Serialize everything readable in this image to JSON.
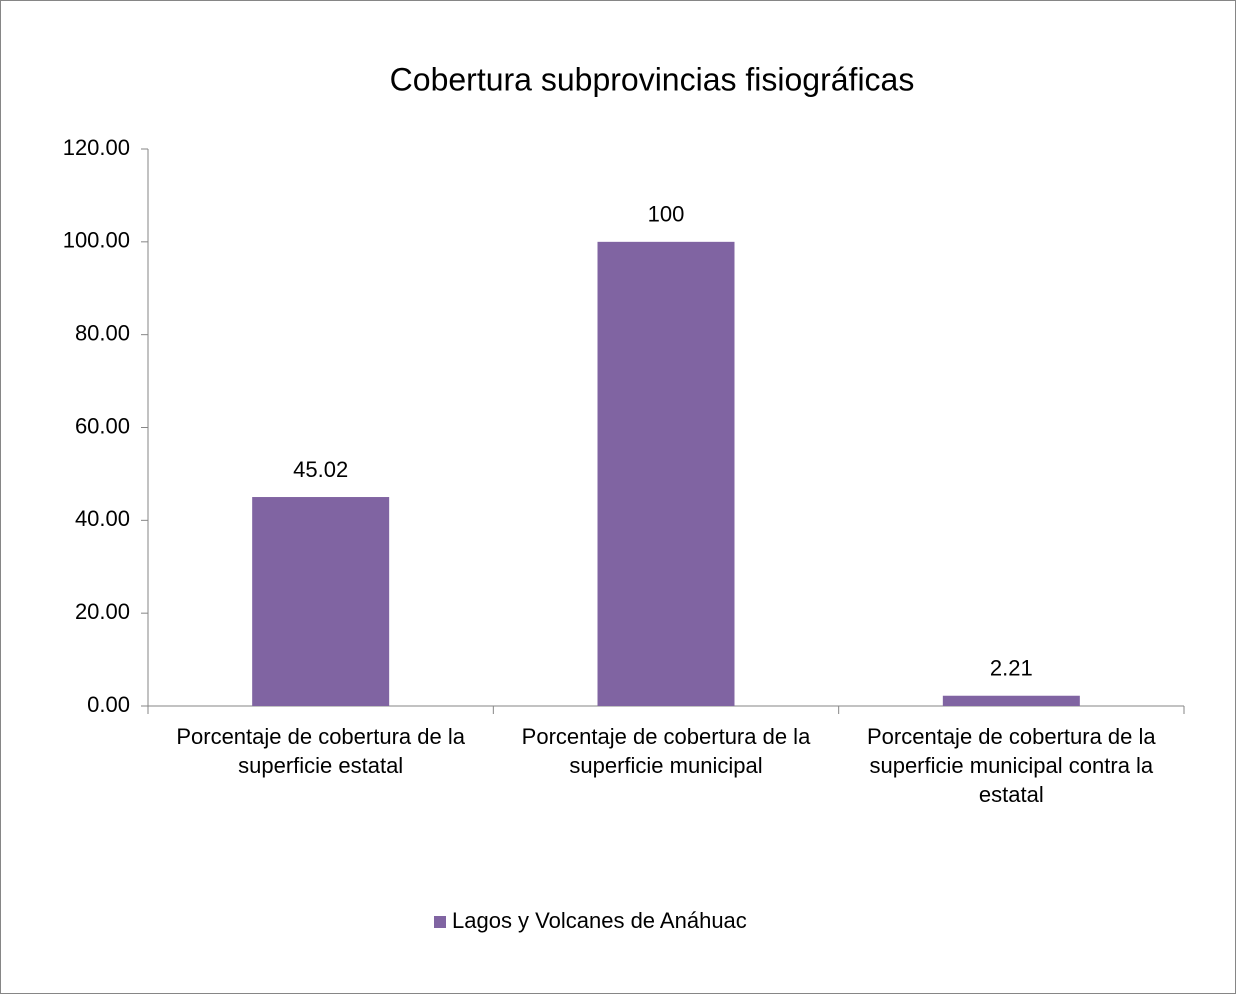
{
  "chart_data": {
    "type": "bar",
    "title": "Cobertura subprovincias fisiográficas",
    "categories": [
      "Porcentaje de cobertura de la superficie estatal",
      "Porcentaje de cobertura de la superficie municipal",
      "Porcentaje de cobertura de la superficie municipal contra la estatal"
    ],
    "series": [
      {
        "name": "Lagos y Volcanes de Anáhuac",
        "color": "#8064a2",
        "values": [
          45.02,
          100,
          2.21
        ]
      }
    ],
    "ylim": [
      0,
      120
    ],
    "yticks": [
      {
        "value": 0,
        "label": "0.00"
      },
      {
        "value": 20,
        "label": "20.00"
      },
      {
        "value": 40,
        "label": "40.00"
      },
      {
        "value": 60,
        "label": "60.00"
      },
      {
        "value": 80,
        "label": "80.00"
      },
      {
        "value": 100,
        "label": "100.00"
      },
      {
        "value": 120,
        "label": "120.00"
      }
    ],
    "legend": "bottom"
  }
}
